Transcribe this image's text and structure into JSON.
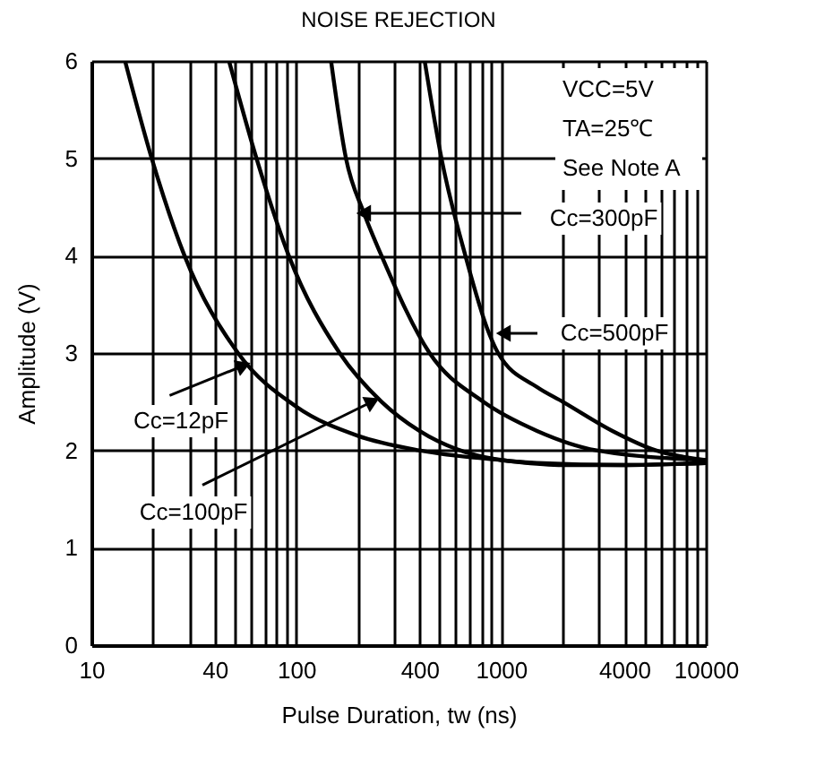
{
  "chart_data": {
    "type": "line",
    "title": "NOISE REJECTION",
    "xlabel": "Pulse Duration, tw (ns)",
    "ylabel": "Amplitude (V)",
    "annotations": [
      "VCC=5V",
      "TA=25℃",
      "See Note A"
    ],
    "log": "x",
    "grid": true,
    "marker": "none",
    "line_style": "solid",
    "xlim": [
      10,
      10000
    ],
    "ylim": [
      0,
      6
    ],
    "xticks": [
      10,
      {
        "value": 20,
        "label": null
      },
      {
        "value": 30,
        "label": null
      },
      40,
      {
        "value": 50,
        "label": null
      },
      {
        "value": 60,
        "label": null
      },
      {
        "value": 70,
        "label": null
      },
      {
        "value": 80,
        "label": null
      },
      {
        "value": 90,
        "label": null
      },
      100,
      {
        "value": 200,
        "label": null
      },
      {
        "value": 300,
        "label": null
      },
      400,
      {
        "value": 500,
        "label": null
      },
      {
        "value": 600,
        "label": null
      },
      {
        "value": 700,
        "label": null
      },
      {
        "value": 800,
        "label": null
      },
      {
        "value": 900,
        "label": null
      },
      1000,
      {
        "value": 2000,
        "label": null
      },
      {
        "value": 3000,
        "label": null
      },
      4000,
      {
        "value": 5000,
        "label": null
      },
      {
        "value": 6000,
        "label": null
      },
      {
        "value": 7000,
        "label": null
      },
      {
        "value": 8000,
        "label": null
      },
      {
        "value": 9000,
        "label": null
      },
      10000
    ],
    "yticks": [
      0,
      1,
      2,
      3,
      4,
      5,
      6
    ],
    "series": [
      {
        "name": "Cc=12pF",
        "color": "#000000",
        "x": [
          14.6,
          19.7,
          28.5,
          52,
          100,
          200,
          400,
          1000,
          2000,
          4000,
          10000
        ],
        "values": [
          6,
          5,
          4,
          3,
          2.45,
          2.15,
          2.0,
          1.9,
          1.85,
          1.85,
          1.87
        ]
      },
      {
        "name": "Cc=100pF",
        "color": "#000000",
        "x": [
          47,
          64,
          92,
          163,
          261,
          400,
          760,
          1500,
          4000,
          10000
        ],
        "values": [
          6,
          5,
          4,
          3,
          2.5,
          2.2,
          1.95,
          1.87,
          1.85,
          1.87
        ]
      },
      {
        "name": "Cc=300pF",
        "color": "#000000",
        "x": [
          148,
          175,
          214,
          261,
          448,
          819,
          1500,
          2930,
          10000
        ],
        "values": [
          6,
          5,
          4.44,
          4,
          3,
          2.5,
          2.2,
          2.0,
          1.9
        ]
      },
      {
        "name": "Cc=500pF",
        "color": "#000000",
        "x": [
          424,
          512,
          670,
          875,
          968,
          1500,
          2000,
          3500,
          5700,
          10000
        ],
        "values": [
          6,
          5,
          4,
          3.2,
          3,
          2.65,
          2.5,
          2.2,
          2.0,
          1.9
        ]
      }
    ]
  }
}
